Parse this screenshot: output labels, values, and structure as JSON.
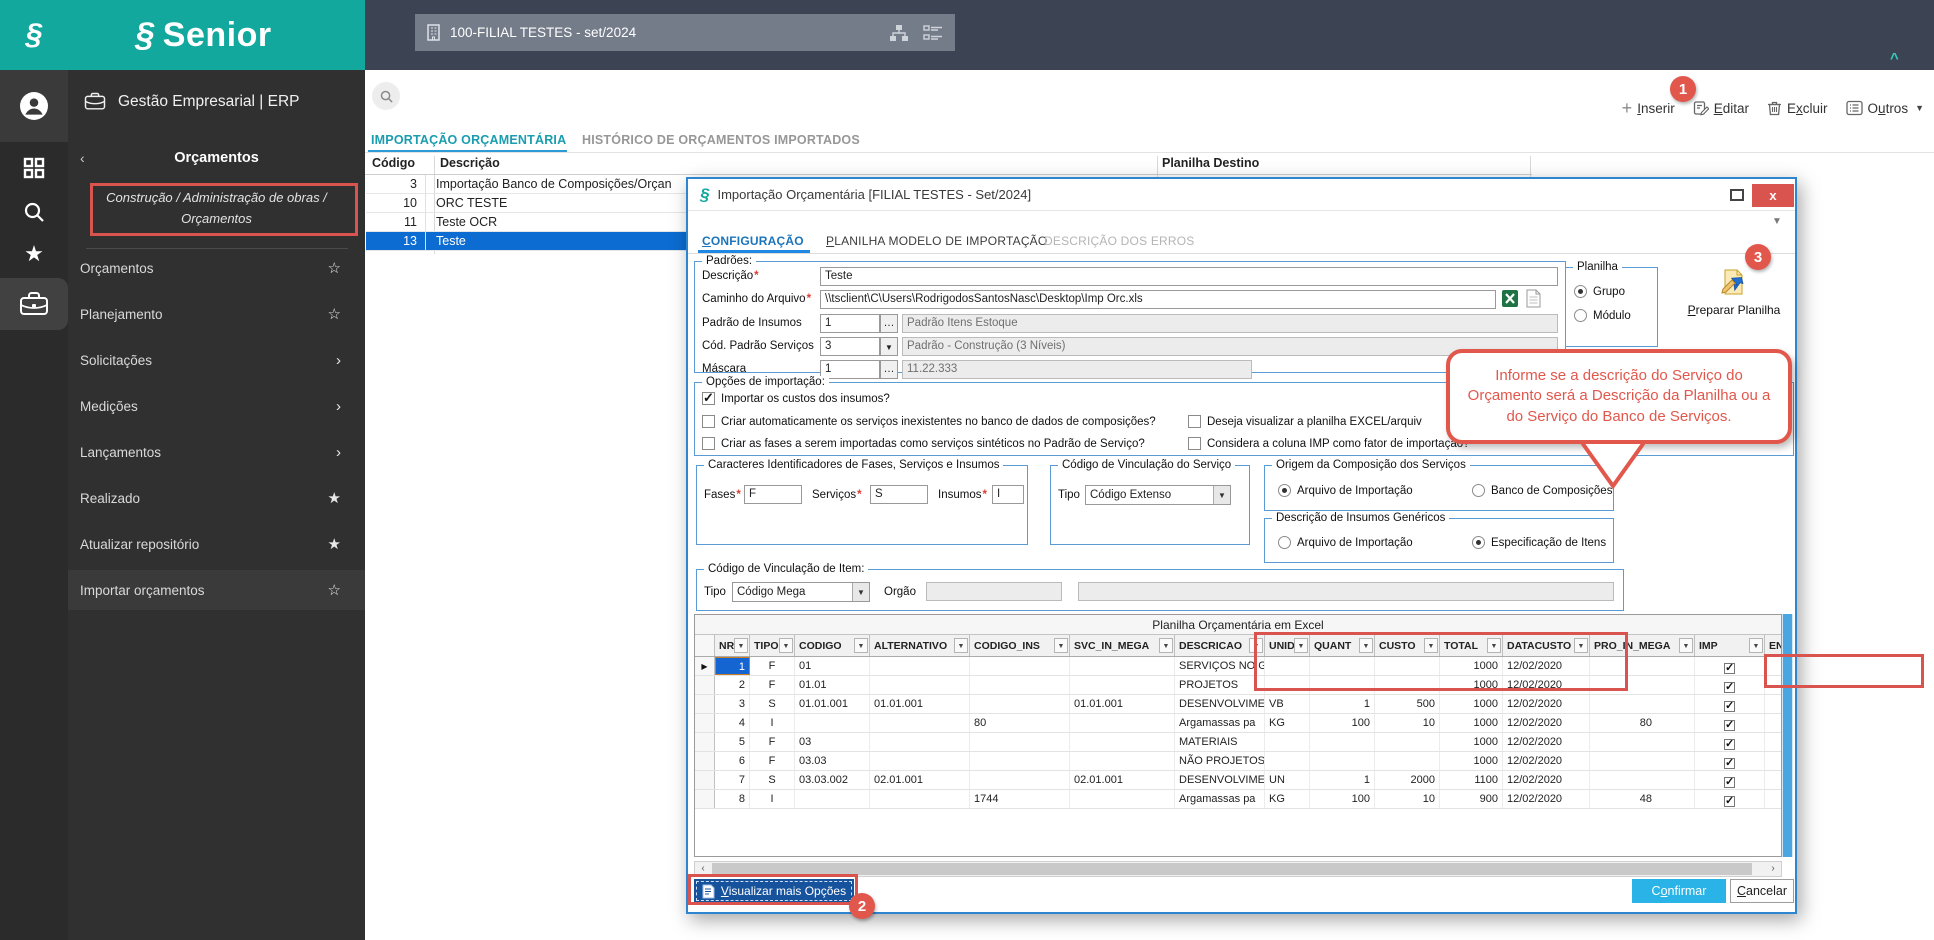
{
  "brand": {
    "name": "Senior",
    "glyph": "§"
  },
  "topbar": {
    "company_selector": "100-FILIAL TESTES - set/2024",
    "collapse_chevron": "^"
  },
  "sidebar": {
    "app_label": "Gestão Empresarial | ERP",
    "section_title": "Orçamentos",
    "back_chevron": "‹",
    "breadcrumb": "Construção / Administração de obras / Orçamentos",
    "items": [
      {
        "label": "Orçamentos",
        "trail": "star-outline"
      },
      {
        "label": "Planejamento",
        "trail": "star-outline"
      },
      {
        "label": "Solicitações",
        "trail": "chevron"
      },
      {
        "label": "Medições",
        "trail": "chevron"
      },
      {
        "label": "Lançamentos",
        "trail": "chevron"
      },
      {
        "label": "Realizado",
        "trail": "star-filled"
      },
      {
        "label": "Atualizar repositório",
        "trail": "star-filled"
      },
      {
        "label": "Importar orçamentos",
        "trail": "star-outline",
        "active": true
      }
    ]
  },
  "toolbar": {
    "insert": "Inserir",
    "edit": "Editar",
    "delete": "Excluir",
    "others": "Outros"
  },
  "main_tabs": {
    "tab1": "IMPORTAÇÃO ORÇAMENTÁRIA",
    "tab2": "HISTÓRICO DE ORÇAMENTOS IMPORTADOS"
  },
  "list": {
    "headers": {
      "code": "Código",
      "description": "Descrição",
      "dest": "Planilha Destino"
    },
    "rows": [
      {
        "code": "3",
        "desc": "Importação Banco de Composições/Orçan",
        "selected": false
      },
      {
        "code": "10",
        "desc": "ORC TESTE",
        "selected": false
      },
      {
        "code": "11",
        "desc": "Teste OCR",
        "selected": false
      },
      {
        "code": "13",
        "desc": "Teste",
        "selected": true
      }
    ]
  },
  "dialog": {
    "title": "Importação Orçamentária [FILIAL TESTES - Set/2024]",
    "title_glyph": "§",
    "close_label": "x",
    "tabs": {
      "tab1": "CONFIGURAÇÃO",
      "tab2": "PLANILHA MODELO DE IMPORTAÇÃO",
      "tab3": "DESCRIÇÃO DOS ERROS"
    },
    "required_marker": "*",
    "padroes": {
      "title": "Padrões:",
      "descricao_label": "Descrição",
      "descricao_value": "Teste",
      "caminho_label": "Caminho do Arquivo",
      "caminho_value": "\\\\tsclient\\C\\Users\\RodrigodosSantosNasc\\Desktop\\Imp Orc.xls",
      "insumos_label": "Padrão de Insumos",
      "insumos_code": "1",
      "insumos_desc": "Padrão Itens Estoque",
      "servicos_label": "Cód. Padrão Serviços",
      "servicos_code": "3",
      "servicos_desc": "Padrão - Construção (3 Níveis)",
      "mascara_label": "Máscara",
      "mascara_code": "1",
      "mascara_desc": "11.22.333",
      "ellipsis": "…"
    },
    "planilha_group": {
      "title": "Planilha",
      "opt1": "Grupo",
      "opt2": "Módulo"
    },
    "preparar_label": "Preparar Planilha",
    "opcoes": {
      "title": "Opções de importação:",
      "cb1": "Importar os custos dos insumos?",
      "cb2": "Criar automaticamente os serviços inexistentes no banco de dados de composições?",
      "cb3": "Deseja visualizar a planilha EXCEL/arquiv",
      "cb4": "Criar as fases a serem importadas como serviços sintéticos no Padrão de Serviço?",
      "cb5": "Considera a coluna IMP como fator de importação?"
    },
    "caracteres": {
      "title": "Caracteres Identificadores de Fases, Serviços e Insumos",
      "fases_label": "Fases",
      "fases_value": "F",
      "servicos_label": "Serviços",
      "servicos_value": "S",
      "insumos_label": "Insumos",
      "insumos_value": "I"
    },
    "cod_vinc_servico": {
      "title": "Código de Vinculação do Serviço",
      "tipo_label": "Tipo",
      "value": "Código Extenso"
    },
    "origem": {
      "title": "Origem da Composição dos Serviços",
      "opt1": "Arquivo de Importação",
      "opt2": "Banco de Composições"
    },
    "descr_insumos": {
      "title": "Descrição de Insumos Genéricos",
      "opt1": "Arquivo de Importação",
      "opt2": "Especificação de Itens"
    },
    "cod_vinc_item": {
      "title": "Código de Vinculação de Item:",
      "tipo_label": "Tipo",
      "value": "Código Mega",
      "orgao_label": "Orgão"
    },
    "grid": {
      "title": "Planilha Orçamentária em Excel",
      "columns": [
        "NR",
        "TIPO",
        "CODIGO",
        "ALTERNATIVO",
        "CODIGO_INS",
        "SVC_IN_MEGA",
        "DESCRICAO",
        "UNID",
        "QUANT",
        "CUSTO",
        "TOTAL",
        "DATACUSTO",
        "PRO_IN_MEGA",
        "IMP",
        "ENCE"
      ],
      "rows": [
        {
          "cells": [
            "1",
            "F",
            "01",
            "",
            "",
            "",
            "SERVIÇOS NO G",
            "",
            "",
            "",
            "1000",
            "12/02/2020",
            ""
          ],
          "imp": true,
          "selected": true
        },
        {
          "cells": [
            "2",
            "F",
            "01.01",
            "",
            "",
            "",
            "PROJETOS",
            "",
            "",
            "",
            "1000",
            "12/02/2020",
            ""
          ],
          "imp": true
        },
        {
          "cells": [
            "3",
            "S",
            "01.01.001",
            "01.01.001",
            "",
            "01.01.001",
            "DESENVOLVIME",
            "VB",
            "1",
            "500",
            "1000",
            "12/02/2020",
            ""
          ],
          "imp": true
        },
        {
          "cells": [
            "4",
            "I",
            "",
            "",
            "80",
            "",
            "Argamassas pa",
            "KG",
            "100",
            "10",
            "1000",
            "12/02/2020",
            "80"
          ],
          "imp": true
        },
        {
          "cells": [
            "5",
            "F",
            "03",
            "",
            "",
            "",
            "MATERIAIS",
            "",
            "",
            "",
            "1000",
            "12/02/2020",
            ""
          ],
          "imp": true
        },
        {
          "cells": [
            "6",
            "F",
            "03.03",
            "",
            "",
            "",
            "NÃO PROJETOS",
            "",
            "",
            "",
            "1000",
            "12/02/2020",
            ""
          ],
          "imp": true
        },
        {
          "cells": [
            "7",
            "S",
            "03.03.002",
            "02.01.001",
            "",
            "02.01.001",
            "DESENVOLVIME",
            "UN",
            "1",
            "2000",
            "1100",
            "12/02/2020",
            ""
          ],
          "imp": true
        },
        {
          "cells": [
            "8",
            "I",
            "",
            "",
            "1744",
            "",
            "Argamassas pa",
            "KG",
            "100",
            "10",
            "900",
            "12/02/2020",
            "48"
          ],
          "imp": true
        }
      ]
    },
    "buttons": {
      "visualizar": "Visualizar mais Opções",
      "confirmar": "Confirmar",
      "cancelar": "Cancelar"
    }
  },
  "annotations": {
    "badge1": "1",
    "badge2": "2",
    "badge3": "3",
    "callout": "Informe se a descrição do Serviço do Orçamento será a Descrição da Planilha ou a do Serviço do Banco de Serviços."
  },
  "colors": {
    "teal": "#13a89e",
    "navy": "#3c4454",
    "accent_blue": "#2e86d1",
    "selection_blue": "#0d6cd1",
    "annotation_red": "#d9534f",
    "confirm_cyan": "#29b3e6"
  }
}
